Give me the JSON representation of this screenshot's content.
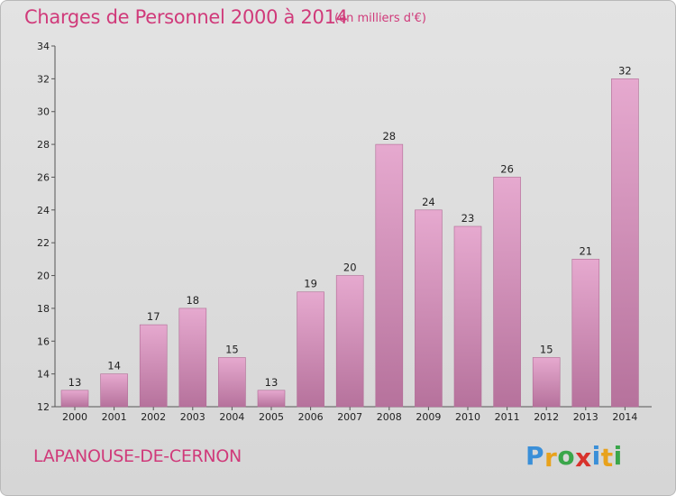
{
  "header": {
    "title": "Charges de Personnel 2000 à 2014",
    "unit": "(en milliers d'€)"
  },
  "footer": {
    "commune": "LAPANOUSE-DE-CERNON",
    "logo_letters": [
      "P",
      "r",
      "o",
      "x",
      "i",
      "t",
      "i"
    ],
    "logo_colors": [
      "#3a8fd8",
      "#e8a21c",
      "#3aa64a",
      "#d8322c",
      "#3a8fd8",
      "#e8a21c",
      "#3aa64a"
    ]
  },
  "colors": {
    "bar_top": "#e6a9cf",
    "bar_bottom": "#b6729c",
    "title": "#d03a7a"
  },
  "chart_data": {
    "type": "bar",
    "title": "Charges de Personnel 2000 à 2014",
    "subtitle": "(en milliers d'€)",
    "xlabel": "",
    "ylabel": "",
    "categories": [
      "2000",
      "2001",
      "2002",
      "2003",
      "2004",
      "2005",
      "2006",
      "2007",
      "2008",
      "2009",
      "2010",
      "2011",
      "2012",
      "2013",
      "2014"
    ],
    "values": [
      13,
      14,
      17,
      18,
      15,
      13,
      19,
      20,
      28,
      24,
      23,
      26,
      15,
      21,
      32
    ],
    "ylim": [
      12,
      34
    ],
    "yticks": [
      12,
      14,
      16,
      18,
      20,
      22,
      24,
      26,
      28,
      30,
      32,
      34
    ],
    "grid": false,
    "legend": "none"
  }
}
